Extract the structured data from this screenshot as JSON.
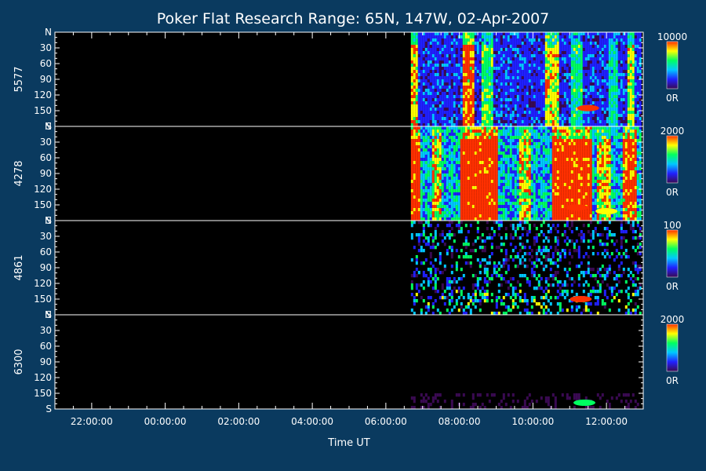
{
  "colors": {
    "background": "#0a3a5f",
    "plot_background": "#000000",
    "axis": "#ffffff",
    "text": "#ffffff"
  },
  "chart_data": {
    "type": "heatmap",
    "title": "Poker Flat Research Range: 65N, 147W, 02-Apr-2007",
    "xlabel": "Time UT",
    "x_tick_labels": [
      "22:00:00",
      "00:00:00",
      "02:00:00",
      "04:00:00",
      "06:00:00",
      "08:00:00",
      "10:00:00",
      "12:00:00"
    ],
    "x_range_hours": [
      21.0,
      37.0
    ],
    "data_start_hour": 30.68,
    "y_tick_labels": [
      "N",
      "30",
      "60",
      "90",
      "120",
      "150",
      "S"
    ],
    "y_range_deg": [
      0,
      180
    ],
    "colorscale": [
      "#3a0a52",
      "#2020ff",
      "#00c8ff",
      "#00ff60",
      "#ffff00",
      "#ff3000"
    ],
    "panels": [
      {
        "channel": "5577",
        "scale_max": "10000",
        "scale_min": "0R",
        "intensity": 0.5,
        "bands": [
          [
            30.68,
            30.85,
            0.8
          ],
          [
            32.05,
            32.35,
            1.0
          ],
          [
            32.6,
            32.9,
            0.55
          ],
          [
            34.3,
            34.7,
            0.75
          ],
          [
            35.0,
            35.3,
            0.45
          ],
          [
            36.0,
            36.3,
            0.35
          ],
          [
            36.55,
            36.75,
            0.7
          ]
        ],
        "blobs": [
          [
            35.5,
            145,
            0.9
          ]
        ]
      },
      {
        "channel": "4278",
        "scale_max": "2000",
        "scale_min": "0R",
        "intensity": 0.85,
        "bands": [
          [
            30.68,
            30.9,
            1.0
          ],
          [
            31.2,
            31.45,
            0.55
          ],
          [
            32.0,
            33.0,
            0.95
          ],
          [
            33.6,
            33.9,
            0.5
          ],
          [
            34.5,
            35.6,
            0.9
          ],
          [
            35.7,
            36.1,
            0.5
          ],
          [
            36.4,
            36.8,
            0.75
          ]
        ],
        "blobs": [
          [
            35.2,
            155,
            1.0
          ],
          [
            36.0,
            162,
            0.8
          ]
        ]
      },
      {
        "channel": "4861",
        "scale_max": "100",
        "scale_min": "0R",
        "intensity": 0.25,
        "noise": true,
        "bands": [],
        "blobs": [
          [
            35.3,
            150,
            0.9
          ]
        ]
      },
      {
        "channel": "6300",
        "scale_max": "2000",
        "scale_min": "0R",
        "intensity": 0.05,
        "bands": [],
        "blobs": [
          [
            35.4,
            168,
            0.6
          ]
        ]
      }
    ]
  }
}
